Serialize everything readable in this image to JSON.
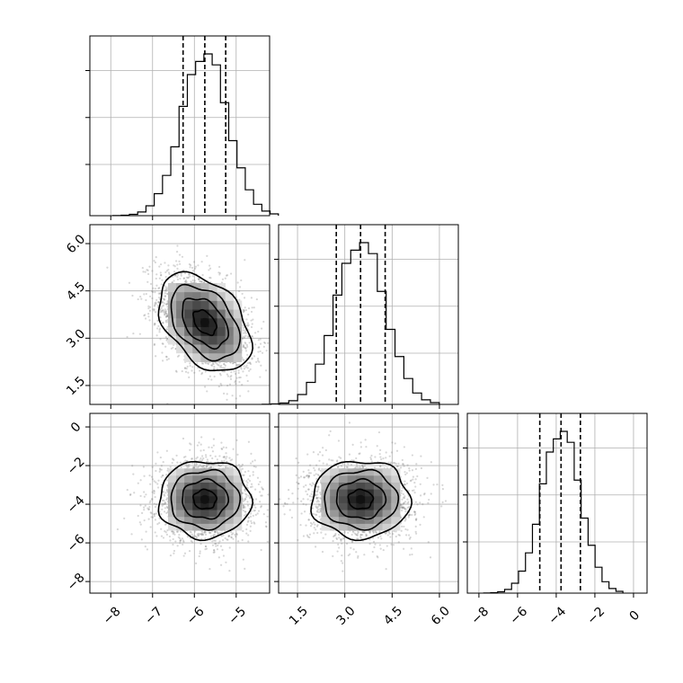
{
  "chart_data": {
    "type": "corner",
    "title": "",
    "grid": true,
    "parameters": [
      {
        "label": "",
        "range": [
          -8.5,
          -4.2
        ],
        "ticks": [
          -8,
          -7,
          -6,
          -5
        ],
        "tick_labels": [
          "−8",
          "−7",
          "−6",
          "−5"
        ],
        "mean": -5.75,
        "sd": 0.55,
        "quantiles": [
          -6.27,
          -5.75,
          -5.25
        ]
      },
      {
        "label": "",
        "range": [
          0.9,
          6.6
        ],
        "ticks": [
          1.5,
          3.0,
          4.5,
          6.0
        ],
        "tick_labels": [
          "1.5",
          "3.0",
          "4.5",
          "6.0"
        ],
        "mean": 3.5,
        "sd": 0.78,
        "quantiles": [
          2.73,
          3.5,
          4.28
        ]
      },
      {
        "label": "",
        "range": [
          -8.6,
          0.7
        ],
        "ticks": [
          -8,
          -6,
          -4,
          -2,
          0
        ],
        "tick_labels": [
          "−8",
          "−6",
          "−4",
          "−2",
          "0"
        ],
        "mean": -3.75,
        "sd": 1.0,
        "quantiles": [
          -4.85,
          -3.75,
          -2.75
        ]
      }
    ],
    "correlations": {
      "1-0": -0.42,
      "2-0": 0.0,
      "2-1": 0.0
    },
    "contour_levels_sigma": [
      0.5,
      1.0,
      1.5,
      2.0
    ],
    "histograms": [
      {
        "param": 0,
        "bins": 20,
        "quantile_style": "dashed"
      },
      {
        "param": 1,
        "bins": 20,
        "quantile_style": "dashed"
      },
      {
        "param": 2,
        "bins": 20,
        "quantile_style": "dashed"
      }
    ]
  }
}
